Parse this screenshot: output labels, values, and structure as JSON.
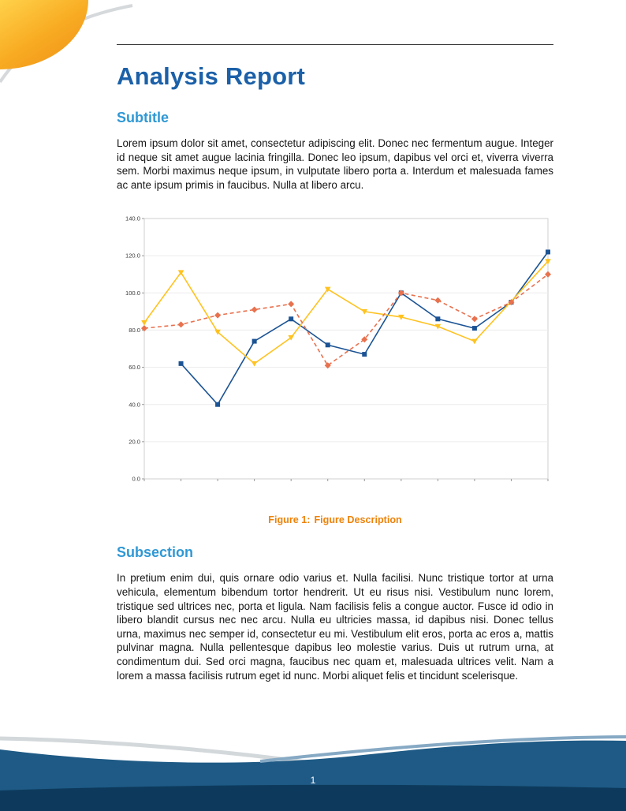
{
  "document": {
    "title": "Analysis Report",
    "subtitle_heading": "Subtitle",
    "intro_paragraph": "Lorem ipsum dolor sit amet, consectetur adipiscing elit. Donec nec fermentum augue. Integer id neque sit amet augue lacinia fringilla. Donec leo ipsum, dapibus vel orci et, viverra viverra sem. Morbi maximus neque ipsum, in vulputate libero porta a. Interdum et malesuada fames ac ante ipsum primis in faucibus. Nulla at libero arcu.",
    "figure_caption_label": "Figure 1:",
    "figure_caption_text": "Figure Description",
    "subsection_heading": "Subsection",
    "subsection_paragraph": "In pretium enim dui, quis ornare odio varius et. Nulla facilisi. Nunc tristique tortor at urna vehicula, elementum bibendum tortor hendrerit. Ut eu risus nisi. Vestibulum nunc lorem, tristique sed ultrices nec, porta et ligula. Nam facilisis felis a congue auctor. Fusce id odio in libero blandit cursus nec nec arcu. Nulla eu ultricies massa, id dapibus nisi. Donec tellus urna, maximus nec semper id, consectetur eu mi. Vestibulum elit eros, porta ac eros a, mattis pulvinar magna. Nulla pellentesque dapibus leo molestie varius. Duis ut rutrum urna, at condimentum dui. Sed orci magna, faucibus nec quam et, malesuada ultrices velit. Nam a lorem a massa facilisis rutrum eget id nunc. Morbi aliquet felis et tincidunt scelerisque.",
    "page_number": "1"
  },
  "chart_data": {
    "type": "line",
    "title": "",
    "xlabel": "",
    "ylabel": "",
    "x": [
      1,
      2,
      3,
      4,
      5,
      6,
      7,
      8,
      9,
      10,
      11,
      12
    ],
    "xlim": [
      1,
      12
    ],
    "ylim": [
      0,
      140
    ],
    "yticks": [
      0,
      20,
      40,
      60,
      80,
      100,
      120,
      140
    ],
    "ytick_labels": [
      "0.0",
      "20.0",
      "40.0",
      "60.0",
      "80.0",
      "100.0",
      "120.0",
      "140.0"
    ],
    "grid": "horizontal",
    "legend": "none",
    "series": [
      {
        "name": "blue-solid-squares",
        "color": "#1b5394",
        "marker": "square",
        "dash": false,
        "values": [
          null,
          62,
          40,
          74,
          86,
          72,
          67,
          100,
          86,
          81,
          95,
          122
        ]
      },
      {
        "name": "yellow-solid-triangles",
        "color": "#ffc220",
        "marker": "triangle-down",
        "dash": false,
        "values": [
          84,
          111,
          79,
          62,
          76,
          102,
          90,
          87,
          82,
          74,
          null,
          117
        ]
      },
      {
        "name": "orange-dashed-diamonds",
        "color": "#e8714e",
        "marker": "diamond",
        "dash": true,
        "values": [
          81,
          83,
          88,
          91,
          94,
          61,
          75,
          100,
          96,
          86,
          95,
          110
        ]
      }
    ]
  },
  "colors": {
    "title_blue": "#1b60a8",
    "heading_blue": "#2f98d5",
    "caption_orange": "#ee8208",
    "footer_blue": "#1e5a85",
    "footer_navy": "#0d3a5c",
    "swoosh_orange": "#f5a01c",
    "swoosh_yellow": "#ffd24a"
  }
}
